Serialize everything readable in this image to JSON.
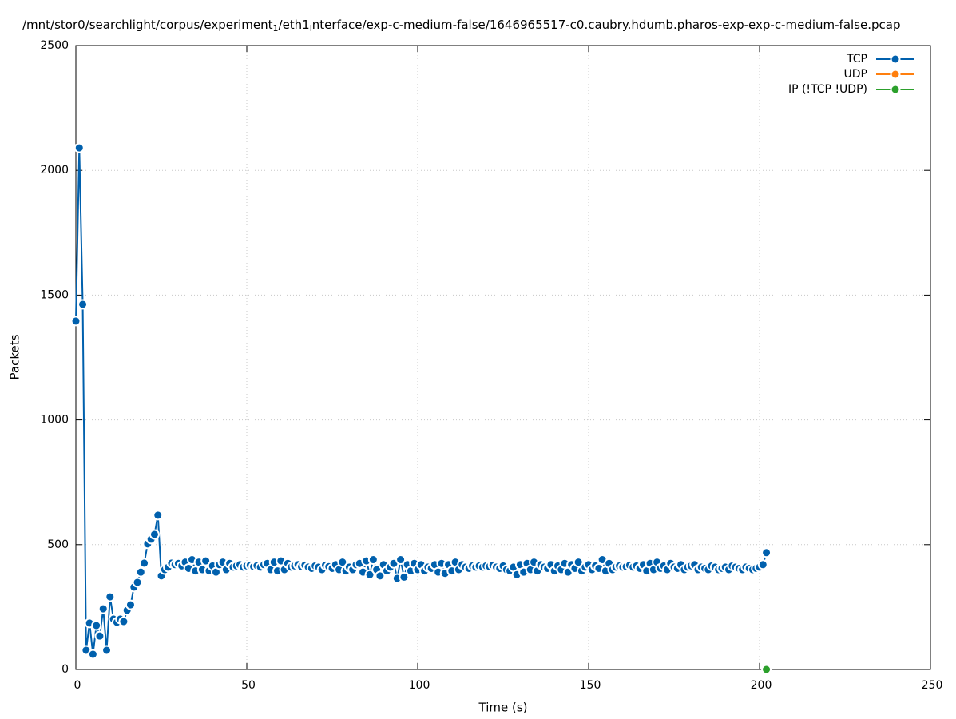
{
  "chart_data": {
    "type": "line",
    "title": [
      "/mnt/stor0/searchlight/corpus/experiment",
      "1",
      "/eth1",
      "i",
      "nterface/exp-c-medium-false/1646965517-c0.caubry.hdumb.pharos-exp-exp-c-medium-false.pcap"
    ],
    "x_label": "Time (s)",
    "y_label": "Packets",
    "xlim": [
      0,
      250
    ],
    "xticks": [
      0,
      50,
      100,
      150,
      200,
      250
    ],
    "ylim": [
      0,
      2500
    ],
    "yticks": [
      0,
      500,
      1000,
      1500,
      2000,
      2500
    ],
    "grid": true,
    "legend": "top-right",
    "series": [
      {
        "name": "TCP",
        "color": "#0060ad",
        "x": [
          0,
          1,
          2,
          3,
          4,
          5,
          6,
          7,
          8,
          9,
          10,
          11,
          12,
          13,
          14,
          15,
          16,
          17,
          18,
          19,
          20,
          21,
          22,
          23,
          24,
          25,
          26,
          27,
          28,
          29,
          30,
          31,
          32,
          33,
          34,
          35,
          36,
          37,
          38,
          39,
          40,
          41,
          42,
          43,
          44,
          45,
          46,
          47,
          48,
          49,
          50,
          51,
          52,
          53,
          54,
          55,
          56,
          57,
          58,
          59,
          60,
          61,
          62,
          63,
          64,
          65,
          66,
          67,
          68,
          69,
          70,
          71,
          72,
          73,
          74,
          75,
          76,
          77,
          78,
          79,
          80,
          81,
          82,
          83,
          84,
          85,
          86,
          87,
          88,
          89,
          90,
          91,
          92,
          93,
          94,
          95,
          96,
          97,
          98,
          99,
          100,
          101,
          102,
          103,
          104,
          105,
          106,
          107,
          108,
          109,
          110,
          111,
          112,
          113,
          114,
          115,
          116,
          117,
          118,
          119,
          120,
          121,
          122,
          123,
          124,
          125,
          126,
          127,
          128,
          129,
          130,
          131,
          132,
          133,
          134,
          135,
          136,
          137,
          138,
          139,
          140,
          141,
          142,
          143,
          144,
          145,
          146,
          147,
          148,
          149,
          150,
          151,
          152,
          153,
          154,
          155,
          156,
          157,
          158,
          159,
          160,
          161,
          162,
          163,
          164,
          165,
          166,
          167,
          168,
          169,
          170,
          171,
          172,
          173,
          174,
          175,
          176,
          177,
          178,
          179,
          180,
          181,
          182,
          183,
          184,
          185,
          186,
          187,
          188,
          189,
          190,
          191,
          192,
          193,
          194,
          195,
          196,
          197,
          198,
          199,
          200,
          201,
          202
        ],
        "values": [
          1396,
          2090,
          1463,
          77,
          186,
          61,
          176,
          134,
          243,
          77,
          291,
          202,
          189,
          202,
          192,
          237,
          259,
          330,
          349,
          390,
          426,
          503,
          522,
          541,
          618,
          375,
          400,
          410,
          426,
          420,
          425,
          415,
          430,
          405,
          440,
          395,
          430,
          400,
          435,
          395,
          415,
          390,
          420,
          430,
          400,
          425,
          410,
          415,
          420,
          410,
          415,
          418,
          412,
          416,
          410,
          420,
          425,
          400,
          430,
          395,
          435,
          400,
          425,
          410,
          415,
          420,
          412,
          418,
          410,
          405,
          415,
          410,
          400,
          418,
          412,
          405,
          420,
          400,
          430,
          395,
          410,
          400,
          420,
          425,
          390,
          435,
          380,
          440,
          400,
          375,
          420,
          395,
          410,
          425,
          365,
          440,
          370,
          420,
          395,
          425,
          400,
          420,
          395,
          410,
          405,
          420,
          390,
          425,
          385,
          420,
          395,
          430,
          400,
          420,
          410,
          405,
          415,
          410,
          415,
          410,
          415,
          412,
          418,
          410,
          405,
          415,
          400,
          395,
          410,
          380,
          420,
          390,
          425,
          400,
          430,
          395,
          420,
          410,
          405,
          420,
          395,
          415,
          400,
          425,
          390,
          420,
          405,
          430,
          395,
          410,
          420,
          400,
          415,
          405,
          440,
          395,
          425,
          400,
          410,
          415,
          410,
          412,
          418,
          410,
          415,
          405,
          420,
          395,
          425,
          400,
          430,
          405,
          415,
          400,
          425,
          410,
          405,
          420,
          400,
          410,
          415,
          420,
          400,
          410,
          405,
          400,
          415,
          410,
          400,
          405,
          410,
          400,
          415,
          410,
          405,
          400,
          410,
          405,
          400,
          405,
          410,
          420,
          468
        ]
      },
      {
        "name": "UDP",
        "color": "#ff7f0e",
        "x": [],
        "values": []
      },
      {
        "name": "IP (!TCP  !UDP)",
        "color": "#2ca02c",
        "x": [
          202
        ],
        "values": [
          0
        ]
      }
    ]
  }
}
